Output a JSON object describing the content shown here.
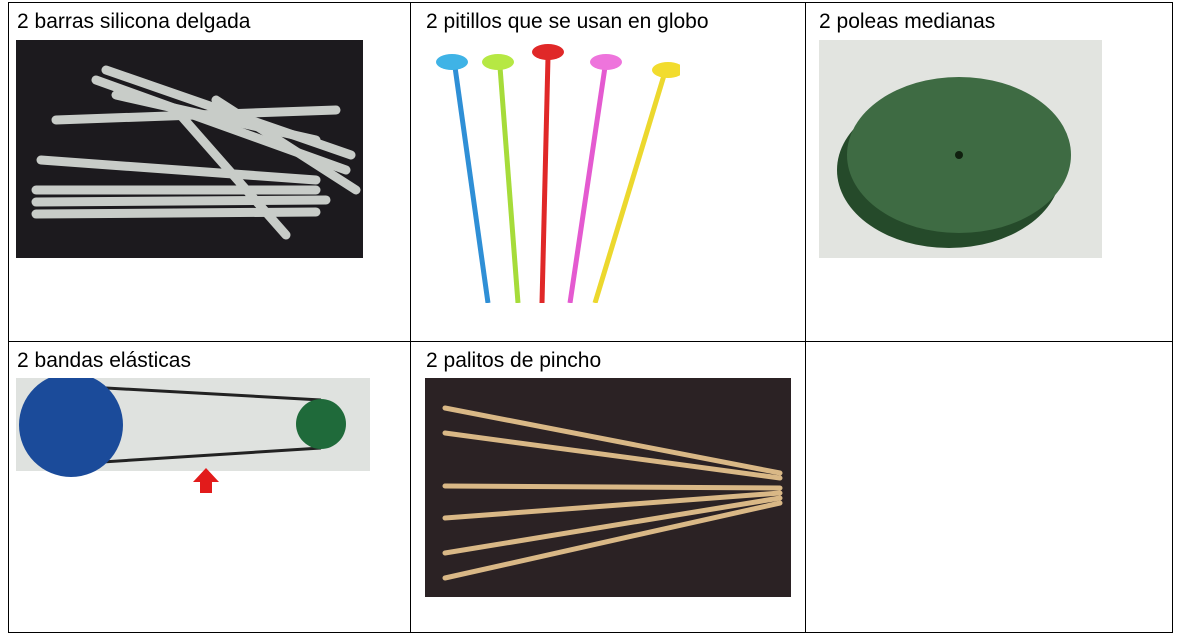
{
  "table": {
    "rows": [
      [
        "2 barras silicona delgada",
        "2 pitillos que se usan en globo",
        "2 poleas medianas"
      ],
      [
        "2 bandas elásticas",
        "2 palitos de pincho"
      ]
    ]
  }
}
